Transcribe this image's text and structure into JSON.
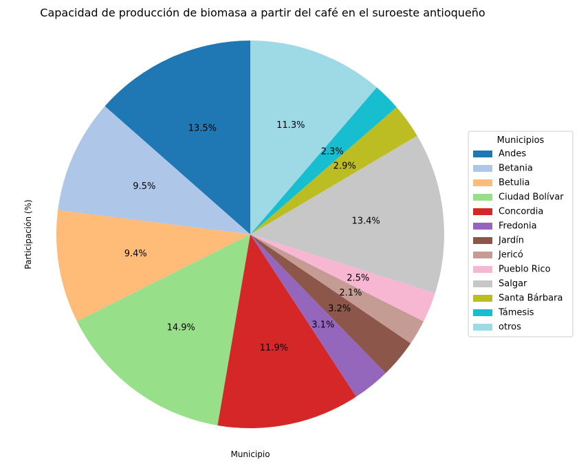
{
  "chart_data": {
    "type": "pie",
    "title": "Capacidad de producción de biomasa a partir del café en el suroeste antioqueño",
    "xlabel": "Municipio",
    "ylabel": "Participación (%)",
    "legend_title": "Municipios",
    "legend_position": "right",
    "start_angle_deg": 90,
    "direction": "counterclockwise",
    "slices": [
      {
        "name": "Andes",
        "value": 13.5,
        "label": "13.5%",
        "color": "#1f77b4"
      },
      {
        "name": "Betania",
        "value": 9.5,
        "label": "9.5%",
        "color": "#aec7e8"
      },
      {
        "name": "Betulia",
        "value": 9.4,
        "label": "9.4%",
        "color": "#ffbb78"
      },
      {
        "name": "Ciudad Bolívar",
        "value": 14.9,
        "label": "14.9%",
        "color": "#98df8a"
      },
      {
        "name": "Concordia",
        "value": 11.9,
        "label": "11.9%",
        "color": "#d62728"
      },
      {
        "name": "Fredonia",
        "value": 3.1,
        "label": "3.1%",
        "color": "#9467bd"
      },
      {
        "name": "Jardín",
        "value": 3.2,
        "label": "3.2%",
        "color": "#8c564b"
      },
      {
        "name": "Jericó",
        "value": 2.1,
        "label": "2.1%",
        "color": "#c49c94"
      },
      {
        "name": "Pueblo Rico",
        "value": 2.5,
        "label": "2.5%",
        "color": "#f7b6d2"
      },
      {
        "name": "Salgar",
        "value": 13.4,
        "label": "13.4%",
        "color": "#c7c7c7"
      },
      {
        "name": "Santa Bárbara",
        "value": 2.9,
        "label": "2.9%",
        "color": "#bcbd22"
      },
      {
        "name": "Támesis",
        "value": 2.3,
        "label": "2.3%",
        "color": "#17becf"
      },
      {
        "name": "otros",
        "value": 11.3,
        "label": "11.3%",
        "color": "#9edae5"
      }
    ]
  }
}
